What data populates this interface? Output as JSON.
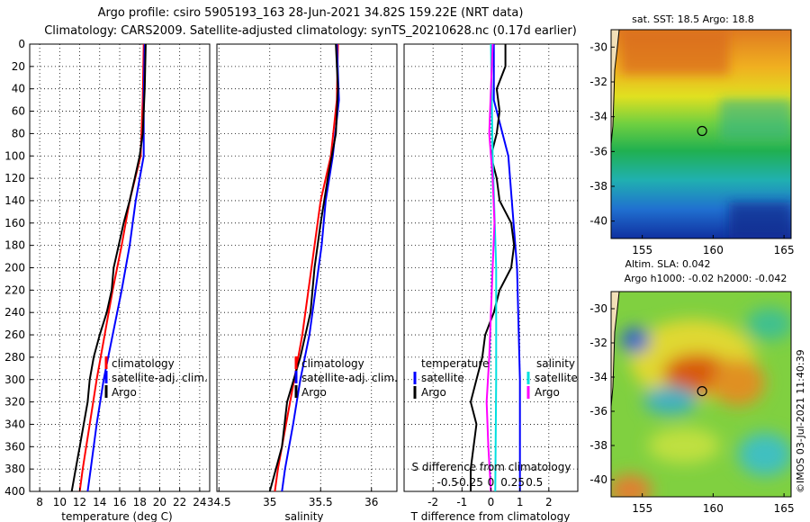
{
  "title": {
    "line1": "Argo profile: csiro 5905193_163 28-Jun-2021 34.82S 159.22E (NRT data)",
    "line2": "Climatology: CARS2009. Satellite-adjusted climatology: synTS_20210628.nc (0.17d earlier)"
  },
  "colors": {
    "climatology": "#ff0000",
    "satellite": "#0000ff",
    "argo": "#000000",
    "sat_t_diff": "#0000ff",
    "sat_s_diff": "#00e0e0",
    "argo_s_diff": "#ff00ff"
  },
  "depth_axis": {
    "ticks": [
      0,
      20,
      40,
      60,
      80,
      100,
      120,
      140,
      160,
      180,
      200,
      220,
      240,
      260,
      280,
      300,
      320,
      340,
      360,
      380,
      400
    ],
    "range": [
      0,
      400
    ]
  },
  "chart_data": [
    {
      "type": "line",
      "name": "temperature-profile",
      "xlabel": "temperature (deg C)",
      "xlim": [
        7,
        25
      ],
      "x_ticks": [
        8,
        10,
        12,
        14,
        16,
        18,
        20,
        22,
        24
      ],
      "ylim": [
        400,
        0
      ],
      "legend": [
        "climatology",
        "satellite-adj. clim.",
        "Argo"
      ],
      "series": [
        {
          "name": "climatology",
          "color": "#ff0000",
          "depth": [
            0,
            50,
            100,
            140,
            180,
            220,
            260,
            300,
            340,
            380,
            400
          ],
          "values": [
            18.4,
            18.3,
            18.1,
            17.0,
            16.2,
            15.3,
            14.5,
            13.7,
            13.0,
            12.3,
            12.0
          ]
        },
        {
          "name": "satellite-adj. clim.",
          "color": "#0000ff",
          "depth": [
            0,
            50,
            100,
            140,
            180,
            220,
            260,
            300,
            340,
            380,
            400
          ],
          "values": [
            18.5,
            18.4,
            18.4,
            17.6,
            17.0,
            16.2,
            15.3,
            14.4,
            13.7,
            13.1,
            12.8
          ]
        },
        {
          "name": "Argo",
          "color": "#000000",
          "depth": [
            0,
            40,
            80,
            100,
            120,
            140,
            160,
            180,
            200,
            220,
            240,
            260,
            280,
            300,
            320,
            340,
            360,
            380,
            400
          ],
          "values": [
            18.6,
            18.5,
            18.3,
            18.0,
            17.5,
            17.0,
            16.4,
            15.9,
            15.4,
            15.2,
            14.7,
            14.0,
            13.4,
            13.0,
            12.8,
            12.4,
            12.0,
            11.6,
            11.2
          ]
        }
      ]
    },
    {
      "type": "line",
      "name": "salinity-profile",
      "xlabel": "salinity",
      "xlim": [
        34.48,
        36.25
      ],
      "x_ticks": [
        34.5,
        35,
        35.5,
        36
      ],
      "x_tick_labels": [
        "34.5",
        "35",
        "35.5",
        "36"
      ],
      "ylim": [
        400,
        0
      ],
      "legend": [
        "climatology",
        "satellite-adj. clim.",
        "Argo"
      ],
      "series": [
        {
          "name": "climatology",
          "color": "#ff0000",
          "depth": [
            0,
            50,
            100,
            140,
            180,
            220,
            260,
            300,
            340,
            380,
            400
          ],
          "values": [
            35.67,
            35.66,
            35.6,
            35.5,
            35.44,
            35.38,
            35.32,
            35.24,
            35.16,
            35.08,
            35.05
          ]
        },
        {
          "name": "satellite-adj. clim.",
          "color": "#0000ff",
          "depth": [
            0,
            50,
            100,
            140,
            180,
            220,
            260,
            300,
            340,
            380,
            400
          ],
          "values": [
            35.66,
            35.68,
            35.62,
            35.55,
            35.51,
            35.45,
            35.39,
            35.3,
            35.23,
            35.15,
            35.12
          ]
        },
        {
          "name": "Argo",
          "color": "#000000",
          "depth": [
            0,
            40,
            80,
            120,
            160,
            200,
            240,
            280,
            320,
            360,
            400
          ],
          "values": [
            35.65,
            35.67,
            35.65,
            35.57,
            35.5,
            35.44,
            35.4,
            35.3,
            35.17,
            35.12,
            35.0
          ]
        }
      ]
    },
    {
      "type": "line",
      "name": "difference-profile",
      "xlabel": "T difference from climatology",
      "xlabel_top": "S difference from climatology",
      "xlim": [
        -3,
        3
      ],
      "x_ticks": [
        -2,
        -1,
        0,
        1,
        2
      ],
      "s_ticks": [
        -0.5,
        -0.25,
        0,
        0.25,
        0.5
      ],
      "s_tick_labels": [
        "-0.5",
        "-0.25",
        "0",
        "0.25",
        "0.5"
      ],
      "s_scale": 3,
      "ylim": [
        400,
        0
      ],
      "legend_temperature": [
        "temperature",
        "satellite",
        "Argo"
      ],
      "legend_salinity": [
        "salinity",
        "satellite",
        "Argo"
      ],
      "series": [
        {
          "name": "T satellite",
          "color": "#0000ff",
          "depth": [
            0,
            50,
            100,
            200,
            300,
            400
          ],
          "values": [
            0.1,
            0.1,
            0.6,
            0.9,
            1.0,
            1.0
          ]
        },
        {
          "name": "T Argo",
          "color": "#000000",
          "depth": [
            0,
            20,
            40,
            60,
            80,
            100,
            120,
            140,
            160,
            180,
            200,
            220,
            240,
            260,
            280,
            300,
            320,
            340,
            360,
            380,
            400
          ],
          "values": [
            0.5,
            0.5,
            0.2,
            0.3,
            0.2,
            0.0,
            0.2,
            0.3,
            0.7,
            0.8,
            0.7,
            0.3,
            0.1,
            -0.2,
            -0.3,
            -0.5,
            -0.7,
            -0.5,
            -0.6,
            -0.7,
            -0.7
          ]
        },
        {
          "name": "S satellite",
          "color": "#00e0e0",
          "depth": [
            0,
            100,
            200,
            300,
            400
          ],
          "values": [
            0.0,
            0.02,
            0.06,
            0.06,
            0.05
          ]
        },
        {
          "name": "S Argo",
          "color": "#ff00ff",
          "depth": [
            0,
            40,
            80,
            120,
            160,
            200,
            240,
            280,
            320,
            360,
            400
          ],
          "values": [
            0.02,
            0.0,
            -0.02,
            0.02,
            0.04,
            0.02,
            0.0,
            -0.02,
            -0.05,
            -0.03,
            0.0
          ]
        }
      ]
    },
    {
      "type": "heatmap",
      "name": "sst-map",
      "title": "sat. SST: 18.5 Argo: 18.8",
      "x_ticks": [
        155,
        160,
        165
      ],
      "y_ticks": [
        -30,
        -32,
        -34,
        -36,
        -38,
        -40
      ],
      "xlim": [
        152.8,
        165.5
      ],
      "ylim": [
        -41,
        -29
      ],
      "argo_position": {
        "lon": 159.22,
        "lat": -34.82
      }
    },
    {
      "type": "heatmap",
      "name": "sla-map",
      "title_line1": "Altim. SLA: 0.042",
      "title_line2": "Argo h1000: -0.02 h2000: -0.042",
      "x_ticks": [
        155,
        160,
        165
      ],
      "y_ticks": [
        -30,
        -32,
        -34,
        -36,
        -38,
        -40
      ],
      "xlim": [
        152.8,
        165.5
      ],
      "ylim": [
        -41,
        -29
      ],
      "argo_position": {
        "lon": 159.22,
        "lat": -34.82
      }
    }
  ],
  "credit": "©IMOS 03-Jul-2021 11:40:39"
}
